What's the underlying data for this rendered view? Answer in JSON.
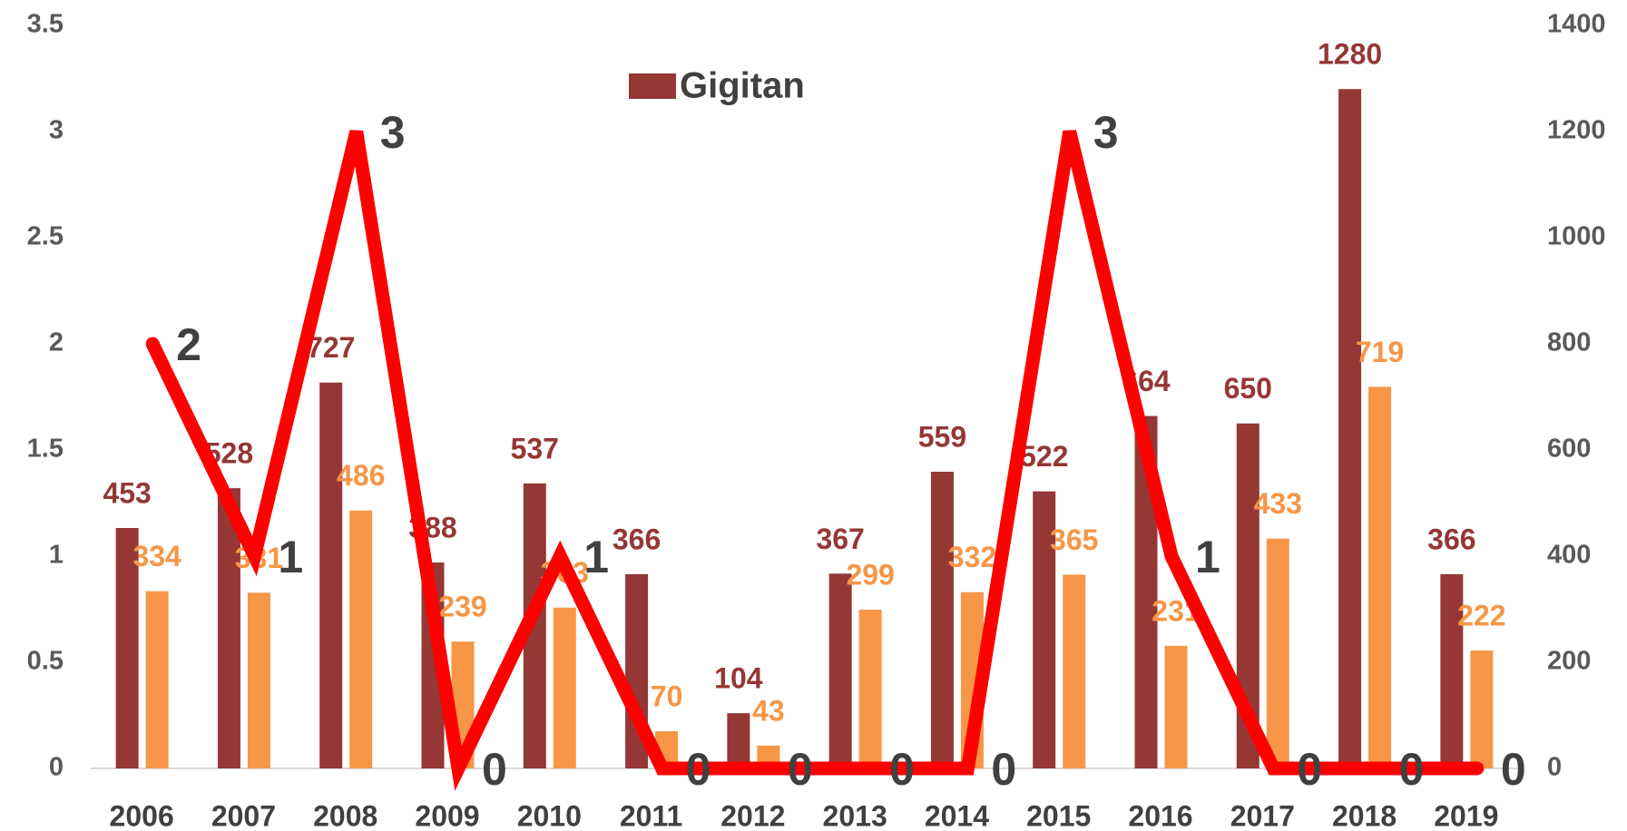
{
  "chart_data": {
    "type": "bar",
    "categories": [
      "2006",
      "2007",
      "2008",
      "2009",
      "2010",
      "2011",
      "2012",
      "2013",
      "2014",
      "2015",
      "2016",
      "2017",
      "2018",
      "2019"
    ],
    "series": [
      {
        "name": "Gigitan",
        "color": "#953735",
        "axis": "y2",
        "values": [
          453,
          528,
          727,
          388,
          537,
          366,
          104,
          367,
          559,
          522,
          664,
          650,
          1280,
          366
        ]
      },
      {
        "color": "#f79646",
        "axis": "y2",
        "values": [
          334,
          331,
          486,
          239,
          303,
          70,
          43,
          299,
          332,
          365,
          231,
          433,
          719,
          222
        ]
      },
      {
        "type": "line",
        "color": "#ff0000",
        "values": [
          2,
          1,
          3,
          0,
          1,
          0,
          0,
          0,
          0,
          3,
          1,
          0,
          0,
          0
        ]
      }
    ],
    "ylim": [
      0,
      3.5
    ],
    "yticks": [
      0,
      0.5,
      1,
      1.5,
      2,
      2.5,
      3,
      3.5
    ],
    "y2lim": [
      0,
      1400
    ],
    "y2ticks": [
      0,
      200,
      400,
      600,
      800,
      1000,
      1200,
      1400
    ],
    "legend": "top"
  }
}
